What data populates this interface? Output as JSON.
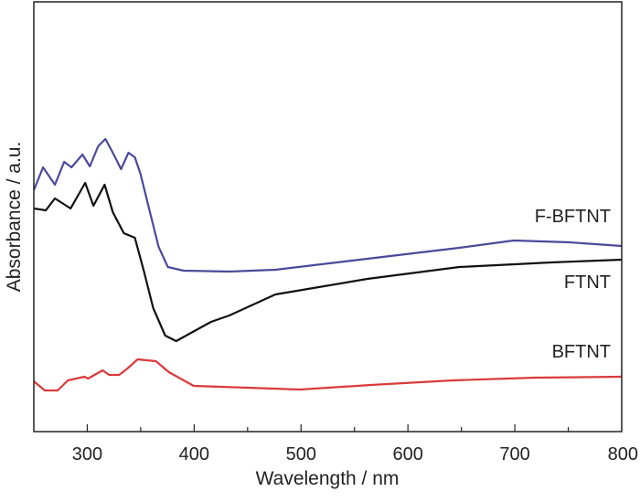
{
  "chart_data": {
    "type": "line",
    "title": "",
    "xlabel": "Wavelength / nm",
    "ylabel": "Absorbance / a.u.",
    "xlim": [
      250,
      800
    ],
    "ylim": [
      3,
      473
    ],
    "xticks": [
      300,
      400,
      500,
      600,
      700,
      800
    ],
    "xtick_labels": [
      "300",
      "400",
      "500",
      "600",
      "700",
      "800"
    ],
    "minor_xticks": [
      350,
      450,
      550,
      650,
      750
    ],
    "grid": false,
    "legend": "inline labels at right end of curves",
    "series": [
      {
        "name": "F-BFTNT",
        "color": "#4a4a9a",
        "x": [
          250,
          258.6,
          269.8,
          278.4,
          285.2,
          295.5,
          302.4,
          310.1,
          317,
          323.9,
          331.6,
          338.5,
          344.5,
          349.7,
          358.2,
          366.8,
          375.4,
          390,
          433,
          476,
          562,
          648,
          699,
          751,
          800
        ],
        "y": [
          267,
          292,
          273,
          298,
          292,
          306,
          293,
          315,
          323,
          308,
          290,
          308,
          303,
          285,
          245,
          205,
          183,
          179,
          178,
          180,
          192,
          204,
          212,
          210,
          206
        ]
      },
      {
        "name": "FTNT",
        "color": "#111111",
        "x": [
          250,
          261.2,
          269.8,
          284.4,
          298.1,
          305.8,
          316.2,
          323.9,
          334.2,
          344.5,
          353.1,
          361.7,
          372.9,
          383.2,
          415.8,
          433,
          476,
          562,
          648,
          734,
          800
        ],
        "y": [
          247,
          245,
          258,
          247,
          275,
          250,
          273,
          243,
          220,
          215,
          178,
          138,
          108,
          102,
          123,
          130,
          153,
          170,
          183,
          188,
          191
        ]
      },
      {
        "name": "BFTNT",
        "color": "#d93a3a",
        "x": [
          250,
          260.3,
          272.3,
          281.8,
          297.3,
          300.7,
          314.4,
          320.4,
          329.9,
          337.6,
          347.1,
          364.3,
          376.3,
          399.5,
          449.3,
          499.1,
          565.3,
          641.8,
          719.1,
          800
        ],
        "y": [
          58,
          48,
          48,
          59,
          63,
          61,
          70,
          65,
          65,
          72,
          82,
          80,
          68,
          53,
          51,
          49,
          54,
          59,
          62,
          63
        ]
      }
    ]
  }
}
